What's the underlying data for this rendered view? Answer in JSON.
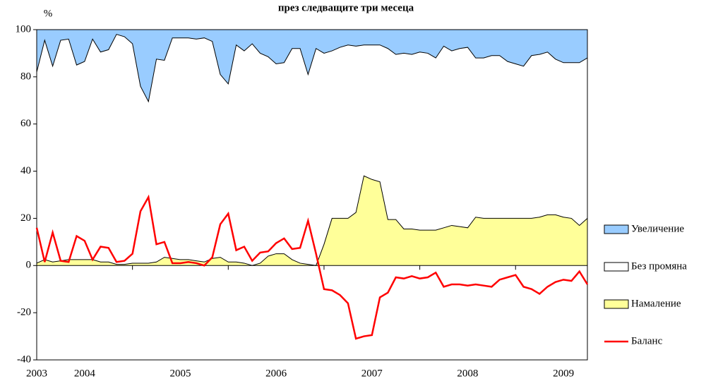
{
  "chart_data": {
    "type": "area",
    "title": "през следващите три месеца",
    "y_label": "%",
    "categories": [
      "2003",
      null,
      null,
      null,
      null,
      null,
      "2004",
      null,
      null,
      null,
      null,
      null,
      null,
      null,
      null,
      null,
      null,
      null,
      "2005",
      null,
      null,
      null,
      null,
      null,
      null,
      null,
      null,
      null,
      null,
      null,
      "2006",
      null,
      null,
      null,
      null,
      null,
      null,
      null,
      null,
      null,
      null,
      null,
      "2007",
      null,
      null,
      null,
      null,
      null,
      null,
      null,
      null,
      null,
      null,
      null,
      "2008",
      null,
      null,
      null,
      null,
      null,
      null,
      null,
      null,
      null,
      null,
      null,
      "2009",
      null,
      null,
      null
    ],
    "ylim": [
      -40,
      100
    ],
    "yticks": [
      -40,
      -20,
      0,
      20,
      40,
      60,
      80,
      100
    ],
    "stacked": true,
    "legend": "right",
    "series": [
      {
        "name": "Увеличение",
        "type": "area",
        "color": "#99ccff",
        "values": [
          18,
          4.5,
          15.5,
          4.5,
          4,
          15,
          13.5,
          4,
          9.5,
          8.5,
          2,
          3,
          6,
          24,
          30.5,
          12.5,
          13,
          3.5,
          3.5,
          3.5,
          4,
          3.5,
          5,
          19,
          23,
          6.5,
          9,
          6,
          10,
          11.5,
          14.5,
          14,
          8,
          8,
          19,
          8,
          10,
          9,
          7.5,
          6.5,
          7,
          6.5,
          6.5,
          6.5,
          8,
          10.5,
          10,
          10.5,
          9.5,
          10,
          12,
          7,
          9,
          8,
          7.5,
          12,
          12,
          11,
          11,
          13.5,
          14.5,
          15.5,
          11,
          10.5,
          9.5,
          12.5,
          14,
          14,
          14,
          12
        ]
      },
      {
        "name": "Без промяна",
        "type": "area",
        "color": "#ffffff",
        "values": [
          81,
          93,
          83,
          93.5,
          93.5,
          82.5,
          84,
          93.5,
          89,
          90,
          97.5,
          96.5,
          93,
          75,
          68.5,
          86,
          83.5,
          93.5,
          94,
          94,
          94,
          95,
          92,
          77.5,
          75.5,
          92,
          90,
          94,
          89,
          84.5,
          80.5,
          81,
          89.5,
          91,
          80.5,
          92,
          81,
          71,
          72.5,
          73.5,
          70.5,
          55.5,
          57,
          58,
          72.5,
          70,
          74.5,
          74,
          75.5,
          75,
          73,
          77,
          74,
          75.5,
          76.5,
          67.5,
          68,
          69,
          69,
          66.5,
          65.5,
          64.5,
          69,
          69,
          69,
          66,
          65.5,
          66,
          69,
          68
        ]
      },
      {
        "name": "Намаление",
        "type": "area",
        "color": "#ffff99",
        "values": [
          1,
          2.5,
          1.5,
          2,
          2.5,
          2.5,
          2.5,
          2.5,
          1.5,
          1.5,
          0.5,
          0.5,
          1,
          1,
          1,
          1.5,
          3.5,
          3,
          2.5,
          2.5,
          2,
          1.5,
          3,
          3.5,
          1.5,
          1.5,
          1,
          0,
          1,
          4,
          5,
          5,
          2.5,
          1,
          0.5,
          0,
          9,
          20,
          20,
          20,
          22.5,
          38,
          36.5,
          35.5,
          19.5,
          19.5,
          15.5,
          15.5,
          15,
          15,
          15,
          16,
          17,
          16.5,
          16,
          20.5,
          20,
          20,
          20,
          20,
          20,
          20,
          20,
          20.5,
          21.5,
          21.5,
          20.5,
          20,
          17,
          20
        ]
      },
      {
        "name": "Баланс",
        "type": "line",
        "color": "#ff0000",
        "values": [
          16,
          1.5,
          14,
          2,
          1.5,
          12.5,
          10.5,
          2.5,
          8,
          7.5,
          1.5,
          2,
          5,
          23,
          29,
          9,
          10,
          1,
          1,
          1.5,
          1,
          0,
          3.5,
          17.5,
          22,
          6.5,
          8,
          2,
          5.5,
          6,
          9.5,
          11.5,
          7,
          7.5,
          19,
          5,
          -10,
          -10.5,
          -12.5,
          -16,
          -31,
          -30,
          -29.5,
          -13.5,
          -11.5,
          -5,
          -5.5,
          -4.5,
          -5.5,
          -5,
          -3,
          -9,
          -8,
          -8,
          -8.5,
          -8,
          -8.5,
          -9,
          -6,
          -5,
          -4,
          -9,
          -10,
          -12,
          -9,
          -7,
          -6,
          -6.5,
          -2.5,
          -8
        ]
      }
    ]
  }
}
